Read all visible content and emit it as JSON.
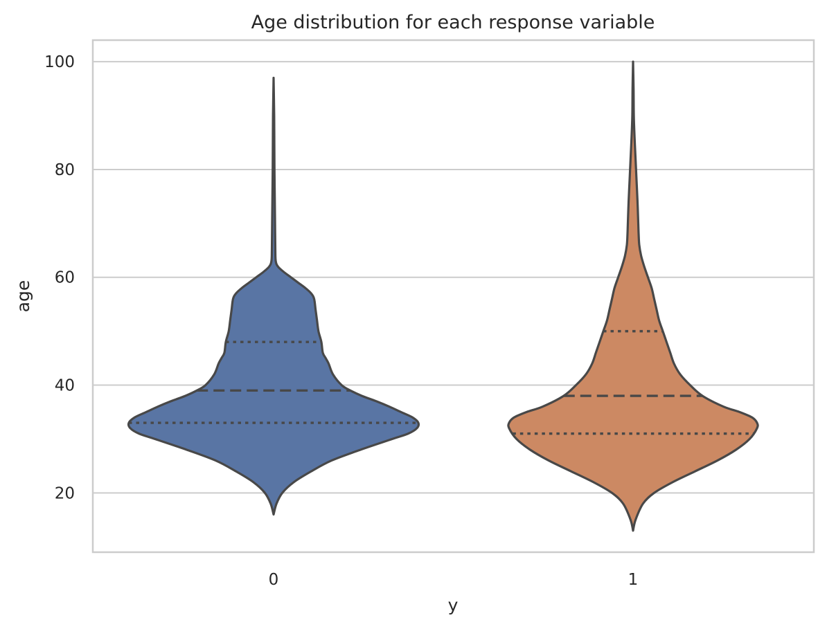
{
  "chart_data": {
    "type": "violin",
    "title": "Age distribution for each response variable",
    "xlabel": "y",
    "ylabel": "age",
    "ylim": [
      9,
      104
    ],
    "yticks": [
      20,
      40,
      60,
      80,
      100
    ],
    "grid": true,
    "categories": [
      "0",
      "1"
    ],
    "colors": [
      "#5975a4",
      "#cc8963"
    ],
    "series": [
      {
        "category": "0",
        "min": 16,
        "max": 97,
        "quartiles": {
          "q1": 33,
          "median": 39,
          "q3": 48
        },
        "density_profile": [
          [
            16,
            0.0
          ],
          [
            18,
            0.02
          ],
          [
            20,
            0.06
          ],
          [
            22,
            0.14
          ],
          [
            24,
            0.26
          ],
          [
            26,
            0.4
          ],
          [
            28,
            0.6
          ],
          [
            30,
            0.82
          ],
          [
            31,
            0.93
          ],
          [
            32,
            0.99
          ],
          [
            33,
            1.0
          ],
          [
            34,
            0.96
          ],
          [
            35,
            0.88
          ],
          [
            36,
            0.8
          ],
          [
            37,
            0.71
          ],
          [
            38,
            0.61
          ],
          [
            39,
            0.53
          ],
          [
            40,
            0.47
          ],
          [
            42,
            0.41
          ],
          [
            44,
            0.38
          ],
          [
            45,
            0.36
          ],
          [
            46,
            0.34
          ],
          [
            48,
            0.33
          ],
          [
            50,
            0.31
          ],
          [
            52,
            0.3
          ],
          [
            54,
            0.29
          ],
          [
            56,
            0.28
          ],
          [
            57,
            0.26
          ],
          [
            58,
            0.22
          ],
          [
            59,
            0.17
          ],
          [
            60,
            0.12
          ],
          [
            61,
            0.07
          ],
          [
            62,
            0.03
          ],
          [
            63,
            0.015
          ],
          [
            65,
            0.012
          ],
          [
            70,
            0.01
          ],
          [
            75,
            0.008
          ],
          [
            80,
            0.006
          ],
          [
            85,
            0.005
          ],
          [
            90,
            0.004
          ],
          [
            97,
            0.0
          ]
        ]
      },
      {
        "category": "1",
        "min": 13,
        "max": 100,
        "quartiles": {
          "q1": 31,
          "median": 38,
          "q3": 50
        },
        "density_profile": [
          [
            13,
            0.0
          ],
          [
            15,
            0.02
          ],
          [
            18,
            0.08
          ],
          [
            20,
            0.17
          ],
          [
            22,
            0.32
          ],
          [
            24,
            0.5
          ],
          [
            26,
            0.68
          ],
          [
            28,
            0.83
          ],
          [
            30,
            0.94
          ],
          [
            32,
            1.0
          ],
          [
            33,
            1.0
          ],
          [
            34,
            0.96
          ],
          [
            35,
            0.86
          ],
          [
            36,
            0.73
          ],
          [
            38,
            0.56
          ],
          [
            40,
            0.46
          ],
          [
            42,
            0.38
          ],
          [
            44,
            0.33
          ],
          [
            46,
            0.3
          ],
          [
            48,
            0.27
          ],
          [
            50,
            0.24
          ],
          [
            52,
            0.21
          ],
          [
            54,
            0.19
          ],
          [
            56,
            0.17
          ],
          [
            58,
            0.15
          ],
          [
            60,
            0.12
          ],
          [
            62,
            0.09
          ],
          [
            64,
            0.065
          ],
          [
            66,
            0.05
          ],
          [
            68,
            0.045
          ],
          [
            70,
            0.042
          ],
          [
            74,
            0.036
          ],
          [
            78,
            0.028
          ],
          [
            82,
            0.02
          ],
          [
            86,
            0.012
          ],
          [
            90,
            0.006
          ],
          [
            95,
            0.003
          ],
          [
            100,
            0.0
          ]
        ]
      }
    ]
  }
}
